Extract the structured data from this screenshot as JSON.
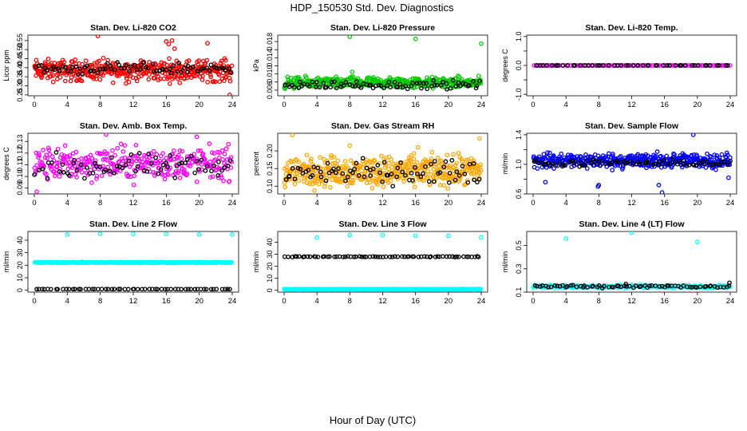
{
  "figure": {
    "title": "HDP_150530  Std. Dev. Diagnostics",
    "xlabel": "Hour of Day (UTC)"
  },
  "chart_data": [
    {
      "type": "scatter",
      "title": "Stan. Dev. Li-820 CO2",
      "ylabel": "Licor ppm",
      "xlim": [
        0,
        24
      ],
      "ylim": [
        0.245,
        0.58
      ],
      "xticks": [
        0,
        4,
        8,
        12,
        16,
        20,
        24
      ],
      "yticks": [
        0.25,
        0.3,
        0.35,
        0.4,
        0.45,
        0.5,
        0.55
      ],
      "ytick_labels": [
        "0.25",
        "0.30",
        "0.35",
        "0.40",
        "0.45",
        "0.50",
        "0.55"
      ],
      "series": [
        {
          "color": "#ff0000",
          "density": 420,
          "range": [
            0.3,
            0.47
          ],
          "outliers": [
            [
              7.7,
              0.575
            ],
            [
              16.0,
              0.545
            ],
            [
              16.3,
              0.53
            ],
            [
              16.7,
              0.55
            ],
            [
              17.0,
              0.505
            ],
            [
              21.0,
              0.535
            ],
            [
              23.7,
              0.25
            ]
          ]
        },
        {
          "color": "#000000",
          "density": 80,
          "range": [
            0.35,
            0.44
          ],
          "outliers": []
        }
      ]
    },
    {
      "type": "scatter",
      "title": "Stan. Dev. Li-820 Pressure",
      "ylabel": "kPa",
      "xlim": [
        0,
        24
      ],
      "ylim": [
        0.0046,
        0.0196
      ],
      "xticks": [
        0,
        4,
        8,
        12,
        16,
        20,
        24
      ],
      "yticks": [
        0.006,
        0.008,
        0.01,
        0.012,
        0.014,
        0.016,
        0.018
      ],
      "ytick_labels": [
        "0.006",
        "",
        "0.010",
        "",
        "0.014",
        "",
        "0.018"
      ],
      "series": [
        {
          "color": "#00cc00",
          "density": 420,
          "range": [
            0.0058,
            0.0098
          ],
          "outliers": [
            [
              8.0,
              0.0192
            ],
            [
              16.0,
              0.0187
            ],
            [
              24.0,
              0.0175
            ],
            [
              8.3,
              0.0105
            ]
          ]
        },
        {
          "color": "#000000",
          "density": 80,
          "range": [
            0.0058,
            0.0088
          ],
          "outliers": []
        }
      ]
    },
    {
      "type": "scatter",
      "title": "Stan. Dev. Li-820 Temp.",
      "ylabel": "degrees C",
      "xlim": [
        0,
        24
      ],
      "ylim": [
        -1.05,
        1.05
      ],
      "xticks": [
        0,
        4,
        8,
        12,
        16,
        20,
        24
      ],
      "yticks": [
        -1.0,
        -0.5,
        0.0,
        0.5,
        1.0
      ],
      "ytick_labels": [
        "-1.0",
        "",
        "0.0",
        "",
        "1.0"
      ],
      "series": [
        {
          "color": "#ff00ff",
          "density": 120,
          "range": [
            0.0,
            0.0
          ],
          "outliers": []
        },
        {
          "color": "#000000",
          "density": 48,
          "range": [
            0.0,
            0.0
          ],
          "outliers": []
        }
      ]
    },
    {
      "type": "scatter",
      "title": "Stan. Dev. Amb. Box Temp.",
      "ylabel": "degrees C",
      "xlim": [
        0,
        24
      ],
      "ylim": [
        0.085,
        0.137
      ],
      "xticks": [
        0,
        4,
        8,
        12,
        16,
        20,
        24
      ],
      "yticks": [
        0.09,
        0.1,
        0.11,
        0.12,
        0.13
      ],
      "ytick_labels": [
        "0.09",
        "0.10",
        "0.11",
        "0.12",
        "0.13"
      ],
      "series": [
        {
          "color": "#ff00ff",
          "density": 330,
          "range": [
            0.09,
            0.132
          ],
          "outliers": [
            [
              8.7,
              0.136
            ],
            [
              19.7,
              0.134
            ],
            [
              0.3,
              0.087
            ]
          ]
        },
        {
          "color": "#000000",
          "density": 70,
          "range": [
            0.092,
            0.124
          ],
          "outliers": []
        }
      ]
    },
    {
      "type": "scatter",
      "title": "Stan. Dev. Gas Stream RH",
      "ylabel": "percent",
      "xlim": [
        0,
        24
      ],
      "ylim": [
        0.078,
        0.25
      ],
      "xticks": [
        0,
        4,
        8,
        12,
        16,
        20,
        24
      ],
      "yticks": [
        0.1,
        0.15,
        0.2
      ],
      "ytick_labels": [
        "0.10",
        "0.15",
        "0.20"
      ],
      "series": [
        {
          "color": "#ffa500",
          "density": 460,
          "range": [
            0.08,
            0.205
          ],
          "outliers": [
            [
              1.0,
              0.245
            ],
            [
              23.8,
              0.235
            ],
            [
              8.0,
              0.215
            ],
            [
              16.3,
              0.21
            ]
          ]
        },
        {
          "color": "#000000",
          "density": 80,
          "range": [
            0.09,
            0.19
          ],
          "outliers": []
        }
      ]
    },
    {
      "type": "scatter",
      "title": "Stan. Dev. Sample Flow",
      "ylabel": "ml/min",
      "xlim": [
        0,
        24
      ],
      "ylim": [
        0.6,
        1.42
      ],
      "xticks": [
        0,
        4,
        8,
        12,
        16,
        20,
        24
      ],
      "yticks": [
        0.6,
        0.8,
        1.0,
        1.2,
        1.4
      ],
      "ytick_labels": [
        "0.6",
        "",
        "1.0",
        "",
        "1.4"
      ],
      "series": [
        {
          "color": "#0000ff",
          "density": 430,
          "range": [
            0.9,
            1.2
          ],
          "outliers": [
            [
              19.5,
              1.4
            ],
            [
              15.7,
              0.62
            ],
            [
              7.9,
              0.7
            ],
            [
              8.0,
              0.72
            ],
            [
              1.5,
              0.76
            ],
            [
              15.3,
              0.72
            ],
            [
              23.8,
              0.82
            ]
          ]
        },
        {
          "color": "#000000",
          "density": 80,
          "range": [
            0.95,
            1.08
          ],
          "outliers": []
        }
      ]
    },
    {
      "type": "scatter",
      "title": "Stan. Dev. Line 2 Flow",
      "ylabel": "ml/min",
      "xlim": [
        0,
        24
      ],
      "ylim": [
        -1.5,
        47
      ],
      "xticks": [
        0,
        4,
        8,
        12,
        16,
        20,
        24
      ],
      "yticks": [
        0,
        10,
        20,
        30,
        40
      ],
      "ytick_labels": [
        "0",
        "10",
        "20",
        "30",
        "40"
      ],
      "series": [
        {
          "color": "#00ffff",
          "density": 300,
          "range": [
            21.6,
            22.8
          ],
          "outliers": [
            [
              4.0,
              44.5
            ],
            [
              8.0,
              45.0
            ],
            [
              12.0,
              45.0
            ],
            [
              16.0,
              45.0
            ],
            [
              20.0,
              44.5
            ],
            [
              24.0,
              44.5
            ]
          ]
        },
        {
          "color": "#000000",
          "density": 60,
          "range": [
            0.8,
            1.0
          ],
          "outliers": []
        }
      ]
    },
    {
      "type": "scatter",
      "title": "Stan. Dev. Line 3 Flow",
      "ylabel": "ml/min",
      "xlim": [
        0,
        24
      ],
      "ylim": [
        -1.5,
        49
      ],
      "xticks": [
        0,
        4,
        8,
        12,
        16,
        20,
        24
      ],
      "yticks": [
        0,
        10,
        20,
        30,
        40
      ],
      "ytick_labels": [
        "0",
        "10",
        "20",
        "30",
        "40"
      ],
      "series": [
        {
          "color": "#00ffff",
          "density": 300,
          "range": [
            0.6,
            1.2
          ],
          "outliers": [
            [
              4.0,
              44.0
            ],
            [
              8.0,
              46.0
            ],
            [
              12.0,
              46.0
            ],
            [
              16.0,
              45.5
            ],
            [
              20.0,
              45.5
            ],
            [
              24.0,
              44.0
            ]
          ]
        },
        {
          "color": "#000000",
          "density": 70,
          "range": [
            27.5,
            28.5
          ],
          "outliers": []
        }
      ]
    },
    {
      "type": "scatter",
      "title": "Stan. Dev. Line 4 (LT) Flow",
      "ylabel": "ml/min",
      "xlim": [
        0,
        24
      ],
      "ylim": [
        0.1,
        0.62
      ],
      "xticks": [
        0,
        4,
        8,
        12,
        16,
        20,
        24
      ],
      "yticks": [
        0.1,
        0.3,
        0.5
      ],
      "ytick_labels": [
        "0.1",
        "0.3",
        "0.5"
      ],
      "series": [
        {
          "color": "#00ffff",
          "density": 260,
          "range": [
            0.13,
            0.165
          ],
          "outliers": [
            [
              4.0,
              0.56
            ],
            [
              12.0,
              0.61
            ],
            [
              20.0,
              0.53
            ]
          ]
        },
        {
          "color": "#000000",
          "density": 70,
          "range": [
            0.13,
            0.17
          ],
          "outliers": [
            [
              23.9,
              0.18
            ],
            [
              11.3,
              0.17
            ]
          ]
        }
      ]
    }
  ]
}
